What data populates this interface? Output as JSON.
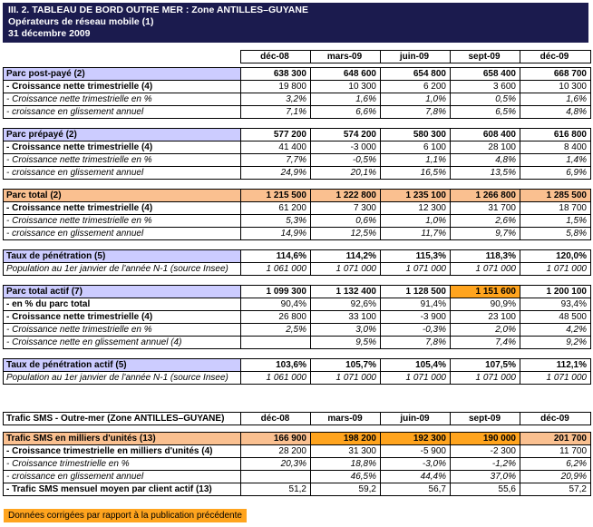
{
  "header": {
    "title": "III. 2. TABLEAU DE BORD OUTRE MER : Zone ANTILLES–GUYANE",
    "subtitle": "Opérateurs de réseau mobile (1)",
    "date": "31 décembre 2009"
  },
  "columns": [
    "déc-08",
    "mars-09",
    "juin-09",
    "sept-09",
    "déc-09"
  ],
  "sections": {
    "postpaye": {
      "rows": [
        {
          "label": "Parc post-payé (2)",
          "values": [
            "638 300",
            "648 600",
            "654 800",
            "658 400",
            "668 700"
          ]
        },
        {
          "label": "- Croissance nette trimestrielle (4)",
          "values": [
            "19 800",
            "10 300",
            "6 200",
            "3 600",
            "10 300"
          ]
        },
        {
          "label": "- Croissance nette trimestrielle en %",
          "values": [
            "3,2%",
            "1,6%",
            "1,0%",
            "0,5%",
            "1,6%"
          ]
        },
        {
          "label": "- croissance en glissement annuel",
          "values": [
            "7,1%",
            "6,6%",
            "7,8%",
            "6,5%",
            "4,8%"
          ]
        }
      ]
    },
    "prepaye": {
      "rows": [
        {
          "label": "Parc prépayé (2)",
          "values": [
            "577 200",
            "574 200",
            "580 300",
            "608 400",
            "616 800"
          ]
        },
        {
          "label": "- Croissance nette trimestrielle (4)",
          "values": [
            "41 400",
            "-3 000",
            "6 100",
            "28 100",
            "8 400"
          ]
        },
        {
          "label": "- Croissance nette trimestrielle en %",
          "values": [
            "7,7%",
            "-0,5%",
            "1,1%",
            "4,8%",
            "1,4%"
          ]
        },
        {
          "label": "- croissance en glissement annuel",
          "values": [
            "24,9%",
            "20,1%",
            "16,5%",
            "13,5%",
            "6,9%"
          ]
        }
      ]
    },
    "total": {
      "rows": [
        {
          "label": "Parc total (2)",
          "values": [
            "1 215 500",
            "1 222 800",
            "1 235 100",
            "1 266 800",
            "1 285 500"
          ]
        },
        {
          "label": "- Croissance nette trimestrielle (4)",
          "values": [
            "61 200",
            "7 300",
            "12 300",
            "31 700",
            "18 700"
          ]
        },
        {
          "label": "- Croissance nette trimestrielle en %",
          "values": [
            "5,3%",
            "0,6%",
            "1,0%",
            "2,6%",
            "1,5%"
          ]
        },
        {
          "label": "- croissance en glissement annuel",
          "values": [
            "14,9%",
            "12,5%",
            "11,7%",
            "9,7%",
            "5,8%"
          ]
        }
      ]
    },
    "penetration": {
      "rows": [
        {
          "label": "Taux de pénétration (5)",
          "values": [
            "114,6%",
            "114,2%",
            "115,3%",
            "118,3%",
            "120,0%"
          ]
        },
        {
          "label": "Population au 1er janvier de l'année N-1 (source Insee)",
          "values": [
            "1 061 000",
            "1 071 000",
            "1 071 000",
            "1 071 000",
            "1 071 000"
          ]
        }
      ]
    },
    "actif": {
      "rows": [
        {
          "label": "Parc total actif (7)",
          "values": [
            "1 099 300",
            "1 132 400",
            "1 128 500",
            "1 151 600",
            "1 200 100"
          ]
        },
        {
          "label": "- en % du parc total",
          "values": [
            "90,4%",
            "92,6%",
            "91,4%",
            "90,9%",
            "93,4%"
          ]
        },
        {
          "label": "- Croissance nette trimestrielle (4)",
          "values": [
            "26 800",
            "33 100",
            "-3 900",
            "23 100",
            "48 500"
          ]
        },
        {
          "label": "- Croissance nette trimestrielle en %",
          "values": [
            "2,5%",
            "3,0%",
            "-0,3%",
            "2,0%",
            "4,2%"
          ]
        },
        {
          "label": "- Croissance nette en glissement annuel (4)",
          "values": [
            "",
            "9,5%",
            "7,8%",
            "7,4%",
            "9,2%"
          ]
        }
      ]
    },
    "penetration_actif": {
      "rows": [
        {
          "label": "Taux de pénétration actif (5)",
          "values": [
            "103,6%",
            "105,7%",
            "105,4%",
            "107,5%",
            "112,1%"
          ]
        },
        {
          "label": "Population au 1er janvier de l'année N-1 (source Insee)",
          "values": [
            "1 061 000",
            "1 071 000",
            "1 071 000",
            "1 071 000",
            "1 071 000"
          ]
        }
      ]
    }
  },
  "sms": {
    "title": "Trafic SMS - Outre-mer (Zone ANTILLES–GUYANE)",
    "rows": [
      {
        "label": "Trafic SMS en milliers d'unités (13)",
        "values": [
          "166 900",
          "198 200",
          "192 300",
          "190 000",
          "201 700"
        ]
      },
      {
        "label": "- Croissance trimestrielle en milliers d'unités (4)",
        "values": [
          "28 200",
          "31 300",
          "-5 900",
          "-2 300",
          "11 700"
        ]
      },
      {
        "label": "- Croissance trimestrielle en %",
        "values": [
          "20,3%",
          "18,8%",
          "-3,0%",
          "-1,2%",
          "6,2%"
        ]
      },
      {
        "label": "- croissance en glissement annuel",
        "values": [
          "",
          "46,5%",
          "44,4%",
          "37,0%",
          "20,9%"
        ]
      },
      {
        "label": "- Trafic SMS mensuel moyen par client actif (13)",
        "values": [
          "51,2",
          "59,2",
          "56,7",
          "55,6",
          "57,2"
        ]
      }
    ]
  },
  "footer_note": "Données corrigées par rapport à la publication précédente",
  "colors": {
    "header_bg": "#1b1b4e",
    "lavender": "#ccccff",
    "peach": "#fac090",
    "highlight": "#ffa41e"
  }
}
